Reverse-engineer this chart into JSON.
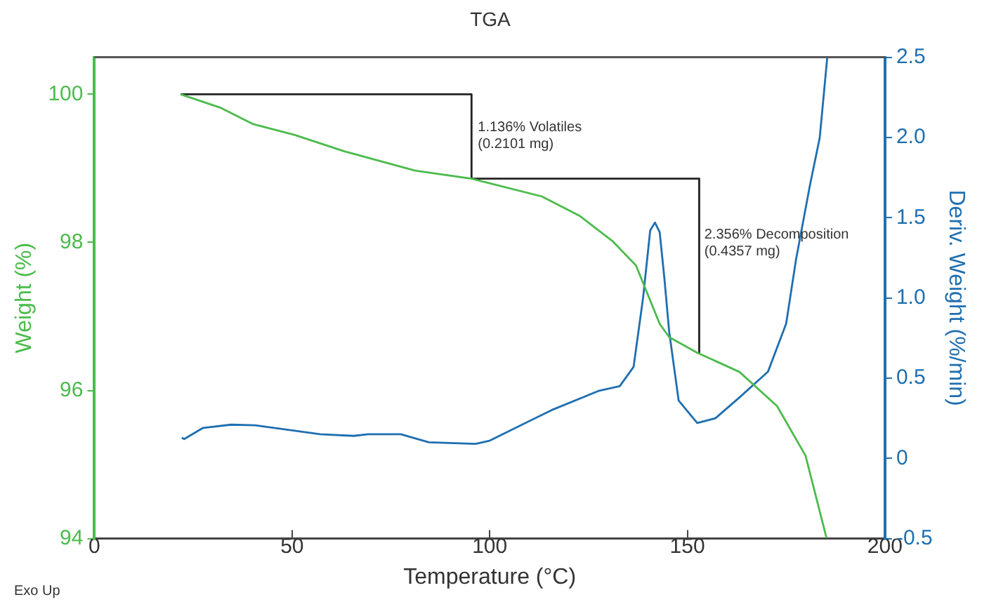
{
  "chart_data": {
    "type": "line",
    "title": "TGA",
    "xlabel": "Temperature (°C)",
    "ylabel": "Weight (%)",
    "y2label": "Deriv. Weight (%/min)",
    "xlim": [
      0,
      200
    ],
    "xticks": [
      0,
      50,
      100,
      150,
      200
    ],
    "ylim": [
      94,
      100.5
    ],
    "yticks": [
      94,
      96,
      98,
      100
    ],
    "y2lim": [
      -0.5,
      2.5
    ],
    "y2ticks": [
      -0.5,
      0,
      0.5,
      {
        "value": 1,
        "label": "1.0"
      },
      1.5,
      {
        "value": 2,
        "label": "2.0"
      },
      2.5
    ],
    "grid": false,
    "legend": false,
    "marker": "none",
    "line_style": "solid",
    "series": [
      {
        "color": "#4cbb4c",
        "x": [
          21.8,
          31.8,
          40,
          50.7,
          63.2,
          81.1,
          95.4,
          113.2,
          122.7,
          131,
          137,
          143,
          145.4,
          152.5,
          163.2,
          172.7,
          179.9,
          185.2
        ],
        "values": [
          100.0,
          99.82,
          99.6,
          99.45,
          99.23,
          98.97,
          98.86,
          98.62,
          98.36,
          98.02,
          97.69,
          96.9,
          96.72,
          96.51,
          96.25,
          95.79,
          95.12,
          94.01
        ]
      },
      {
        "color": "#1f6fb0",
        "axis": "y2",
        "x": [
          22.1,
          22.7,
          27.5,
          34.6,
          40.6,
          51.3,
          57.1,
          65.6,
          69.2,
          77.5,
          84.6,
          96.4,
          100,
          115.6,
          127.5,
          132.9,
          136.4,
          138.8,
          140.6,
          141.8,
          143,
          144.2,
          145.4,
          147.8,
          152.5,
          157.1,
          163.2,
          170.4,
          175,
          177.5,
          181,
          183.5,
          185.4
        ],
        "values": [
          0.13,
          0.12,
          0.19,
          0.21,
          0.206,
          0.17,
          0.15,
          0.14,
          0.15,
          0.15,
          0.1,
          0.09,
          0.11,
          0.3,
          0.42,
          0.45,
          0.57,
          1.0,
          1.42,
          1.47,
          1.41,
          1.12,
          0.79,
          0.36,
          0.22,
          0.25,
          0.38,
          0.54,
          0.84,
          1.24,
          1.7,
          2.0,
          2.5
        ]
      },
      {
        "color": "#222222",
        "x": [
          21.8,
          95.4
        ],
        "values": [
          100,
          100
        ]
      },
      {
        "color": "#222222",
        "x": [
          95.4,
          153
        ],
        "values": [
          98.86,
          98.86
        ]
      },
      {
        "color": "#222222",
        "x": [
          95.4,
          95.4
        ],
        "values": [
          100,
          98.86
        ]
      },
      {
        "color": "#222222",
        "x": [
          153,
          153
        ],
        "values": [
          98.86,
          96.51
        ]
      }
    ],
    "annotations": [
      {
        "text": "1.136% Volatiles\n(0.2101 mg)",
        "x": 97,
        "y": 99.55
      },
      {
        "text": "2.356% Decomposition\n(0.4357 mg)",
        "x": 154.3,
        "y": 98.1
      },
      "Exo Up"
    ]
  }
}
